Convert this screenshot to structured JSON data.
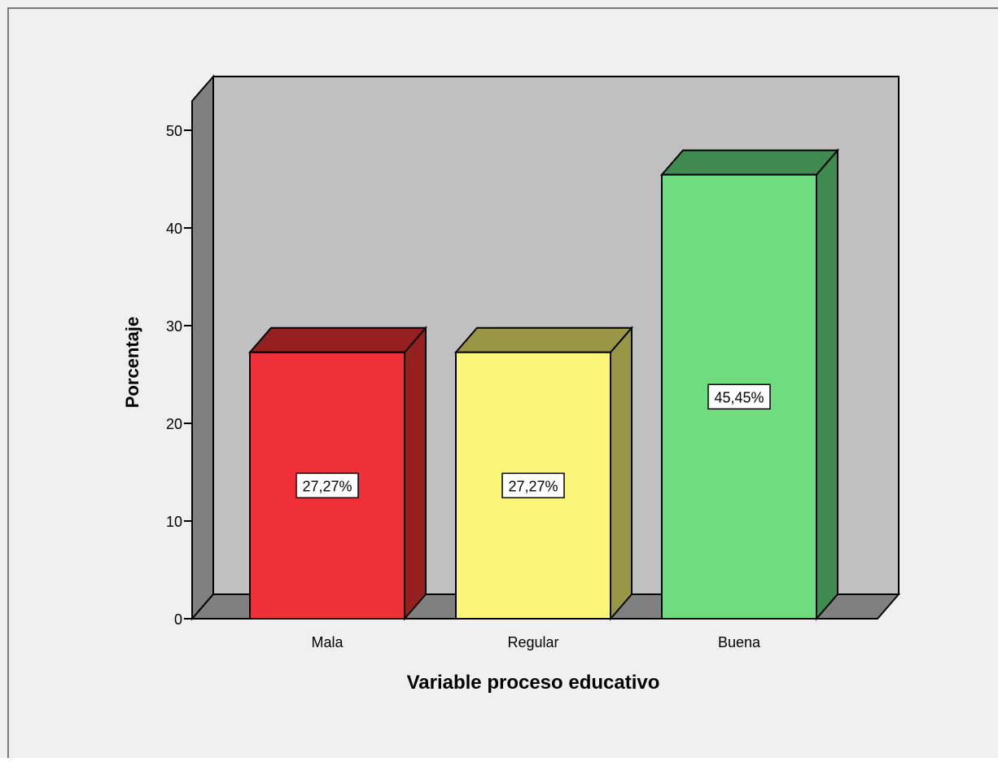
{
  "chart_data": {
    "type": "bar",
    "title": "",
    "xlabel": "Variable proceso educativo",
    "ylabel": "Porcentaje",
    "ylim": [
      0,
      53
    ],
    "yticks": [
      0,
      10,
      20,
      30,
      40,
      50
    ],
    "grid": false,
    "legend": "none",
    "style": "3d",
    "categories": [
      "Mala",
      "Regular",
      "Buena"
    ],
    "values": [
      27.27,
      27.27,
      45.45
    ],
    "data_labels": [
      "27,27%",
      "27,27%",
      "45,45%"
    ],
    "colors": {
      "front": [
        "#ef3038",
        "#fbf677",
        "#6fdc7f"
      ],
      "side": [
        "#96201f",
        "#999646",
        "#3f8a4f"
      ],
      "background_panel": "#c0c0c0",
      "wall": "#808080",
      "floor": "#808080",
      "outer_background": "#f0f0f0"
    }
  }
}
